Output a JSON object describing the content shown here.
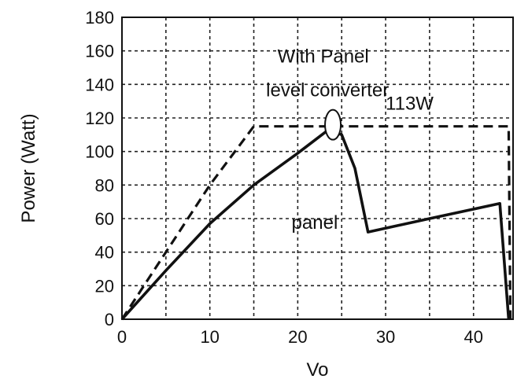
{
  "chart_data": {
    "type": "line",
    "xlabel": "Vo",
    "ylabel": "Power (Watt)",
    "xlim": [
      0,
      44.5
    ],
    "ylim": [
      0,
      180
    ],
    "xticks": [
      0,
      10,
      20,
      30,
      40
    ],
    "yticks": [
      0,
      20,
      40,
      60,
      80,
      100,
      120,
      140,
      160,
      180
    ],
    "grid": true,
    "series": [
      {
        "name": "With Panel level converter",
        "style": "dashed",
        "color": "#111111",
        "x": [
          0,
          10,
          15,
          44,
          44.2
        ],
        "y": [
          0,
          80,
          115,
          115,
          0
        ]
      },
      {
        "name": "panel",
        "style": "solid",
        "color": "#111111",
        "x": [
          0,
          5,
          10,
          15,
          20,
          23.5,
          25,
          26.5,
          28,
          35,
          43,
          44
        ],
        "y": [
          0,
          29,
          57,
          80,
          99,
          113,
          110,
          90,
          52,
          60,
          69,
          0
        ]
      }
    ],
    "annotations": [
      {
        "text": "With Panel",
        "x": 17.7,
        "y": 153
      },
      {
        "text": "level converter",
        "x": 16.4,
        "y": 133
      },
      {
        "text": "113W",
        "x": 30.0,
        "y": 125
      },
      {
        "text": "panel",
        "x": 19.3,
        "y": 54
      }
    ],
    "marker": {
      "shape": "ellipse",
      "x": 24,
      "y": 115,
      "label": "113W"
    }
  }
}
